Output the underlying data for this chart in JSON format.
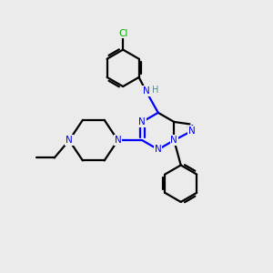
{
  "bg_color": "#ebebeb",
  "bond_color": "#000000",
  "n_color": "#0000ff",
  "cl_color": "#00aa00",
  "h_color": "#5a8a8a",
  "line_width": 1.6,
  "fig_size": [
    3.0,
    3.0
  ],
  "dpi": 100,
  "xlim": [
    0,
    10
  ],
  "ylim": [
    0,
    10
  ]
}
